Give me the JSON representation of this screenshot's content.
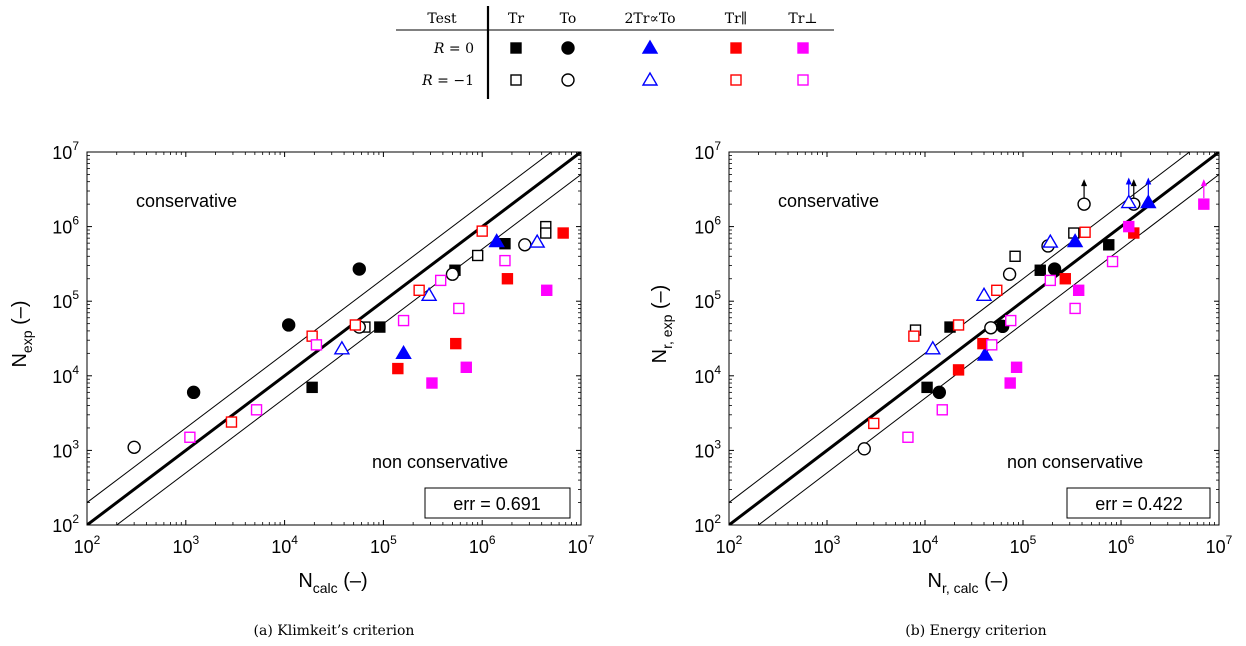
{
  "legend_table": {
    "header": [
      "Test",
      "Tr",
      "To",
      "2Tr∝To",
      "Tr∥",
      "Tr⊥"
    ],
    "rows": [
      {
        "label_var": "R",
        "label_val": " = 0",
        "filled": true
      },
      {
        "label_var": "R",
        "label_val": " = −1",
        "filled": false
      }
    ],
    "series_colors": {
      "Tr": "#000000",
      "To": "#000000",
      "2TrTo": "#0000ff",
      "TrPar": "#ff0000",
      "TrPerp": "#ff00ff"
    },
    "series_shapes": {
      "Tr": "square",
      "To": "circle",
      "2TrTo": "triangle",
      "TrPar": "square",
      "TrPerp": "square"
    }
  },
  "chart_data": [
    {
      "type": "scatter",
      "scale": "log",
      "xlim": [
        100,
        10000000
      ],
      "ylim": [
        100,
        10000000
      ],
      "xtick_exponents": [
        2,
        3,
        4,
        5,
        6,
        7
      ],
      "ytick_exponents": [
        2,
        3,
        4,
        5,
        6,
        7
      ],
      "tick_base": "10",
      "xlabel_main": "N",
      "xlabel_sub": "calc",
      "xlabel_suffix": " (–)",
      "ylabel_main": "N",
      "ylabel_sub": "exp",
      "ylabel_suffix": " (–)",
      "annotation_top": "conservative",
      "annotation_bottom": "non conservative",
      "err_label": "err = 0.691",
      "caption": "(a) Klimkeit’s criterion",
      "reference_lines": {
        "diagonal": 1,
        "band_factor": 2
      },
      "points": [
        {
          "s": "Tr",
          "f": true,
          "x": 19000,
          "y": 7000
        },
        {
          "s": "Tr",
          "f": true,
          "x": 92000,
          "y": 45000
        },
        {
          "s": "Tr",
          "f": true,
          "x": 530000,
          "y": 260000
        },
        {
          "s": "Tr",
          "f": true,
          "x": 1700000,
          "y": 590000
        },
        {
          "s": "Tr",
          "f": false,
          "x": 65000,
          "y": 45000
        },
        {
          "s": "Tr",
          "f": false,
          "x": 900000,
          "y": 410000
        },
        {
          "s": "Tr",
          "f": false,
          "x": 4400000,
          "y": 1000000
        },
        {
          "s": "Tr",
          "f": false,
          "x": 4400000,
          "y": 820000
        },
        {
          "s": "To",
          "f": true,
          "x": 1200,
          "y": 6000
        },
        {
          "s": "To",
          "f": true,
          "x": 11000,
          "y": 48000
        },
        {
          "s": "To",
          "f": true,
          "x": 57000,
          "y": 270000
        },
        {
          "s": "To",
          "f": false,
          "x": 300,
          "y": 1100
        },
        {
          "s": "To",
          "f": false,
          "x": 57000,
          "y": 45000
        },
        {
          "s": "To",
          "f": false,
          "x": 500000,
          "y": 230000
        },
        {
          "s": "To",
          "f": false,
          "x": 2700000,
          "y": 570000
        },
        {
          "s": "2TrTo",
          "f": true,
          "x": 160000,
          "y": 20000
        },
        {
          "s": "2TrTo",
          "f": true,
          "x": 1400000,
          "y": 630000
        },
        {
          "s": "2TrTo",
          "f": false,
          "x": 38000,
          "y": 23000
        },
        {
          "s": "2TrTo",
          "f": false,
          "x": 290000,
          "y": 120000
        },
        {
          "s": "2TrTo",
          "f": false,
          "x": 3600000,
          "y": 620000
        },
        {
          "s": "TrPar",
          "f": true,
          "x": 140000,
          "y": 12500
        },
        {
          "s": "TrPar",
          "f": true,
          "x": 540000,
          "y": 27000
        },
        {
          "s": "TrPar",
          "f": true,
          "x": 1800000,
          "y": 200000
        },
        {
          "s": "TrPar",
          "f": true,
          "x": 6600000,
          "y": 820000
        },
        {
          "s": "TrPar",
          "f": false,
          "x": 2900,
          "y": 2400
        },
        {
          "s": "TrPar",
          "f": false,
          "x": 19000,
          "y": 34000
        },
        {
          "s": "TrPar",
          "f": false,
          "x": 52000,
          "y": 48000
        },
        {
          "s": "TrPar",
          "f": false,
          "x": 230000,
          "y": 140000
        },
        {
          "s": "TrPar",
          "f": false,
          "x": 1000000,
          "y": 870000
        },
        {
          "s": "TrPerp",
          "f": true,
          "x": 310000,
          "y": 8000
        },
        {
          "s": "TrPerp",
          "f": true,
          "x": 690000,
          "y": 13000
        },
        {
          "s": "TrPerp",
          "f": true,
          "x": 4500000,
          "y": 140000
        },
        {
          "s": "TrPerp",
          "f": false,
          "x": 1100,
          "y": 1500
        },
        {
          "s": "TrPerp",
          "f": false,
          "x": 5200,
          "y": 3500
        },
        {
          "s": "TrPerp",
          "f": false,
          "x": 21000,
          "y": 26000
        },
        {
          "s": "TrPerp",
          "f": false,
          "x": 160000,
          "y": 55000
        },
        {
          "s": "TrPerp",
          "f": false,
          "x": 380000,
          "y": 190000
        },
        {
          "s": "TrPerp",
          "f": false,
          "x": 580000,
          "y": 80000
        },
        {
          "s": "TrPerp",
          "f": false,
          "x": 1700000,
          "y": 350000
        }
      ]
    },
    {
      "type": "scatter",
      "scale": "log",
      "xlim": [
        100,
        10000000
      ],
      "ylim": [
        100,
        10000000
      ],
      "xtick_exponents": [
        2,
        3,
        4,
        5,
        6,
        7
      ],
      "ytick_exponents": [
        2,
        3,
        4,
        5,
        6,
        7
      ],
      "tick_base": "10",
      "xlabel_main": "N",
      "xlabel_sub": "r, calc",
      "xlabel_suffix": " (–)",
      "ylabel_main": "N",
      "ylabel_sub": "r, exp",
      "ylabel_suffix": " (–)",
      "annotation_top": "conservative",
      "annotation_bottom": "non conservative",
      "err_label": "err = 0.422",
      "caption": "(b) Energy criterion",
      "reference_lines": {
        "diagonal": 1,
        "band_factor": 2
      },
      "points": [
        {
          "s": "Tr",
          "f": true,
          "x": 10500,
          "y": 7000
        },
        {
          "s": "Tr",
          "f": true,
          "x": 18000,
          "y": 45000
        },
        {
          "s": "Tr",
          "f": true,
          "x": 150000,
          "y": 260000
        },
        {
          "s": "Tr",
          "f": true,
          "x": 750000,
          "y": 570000
        },
        {
          "s": "Tr",
          "f": false,
          "x": 8000,
          "y": 41000
        },
        {
          "s": "Tr",
          "f": false,
          "x": 83000,
          "y": 400000
        },
        {
          "s": "Tr",
          "f": false,
          "x": 330000,
          "y": 820000
        },
        {
          "s": "To",
          "f": true,
          "x": 14000,
          "y": 6000
        },
        {
          "s": "To",
          "f": true,
          "x": 62000,
          "y": 46000
        },
        {
          "s": "To",
          "f": true,
          "x": 210000,
          "y": 270000
        },
        {
          "s": "To",
          "f": false,
          "x": 2400,
          "y": 1050
        },
        {
          "s": "To",
          "f": false,
          "x": 47000,
          "y": 44000
        },
        {
          "s": "To",
          "f": false,
          "x": 73000,
          "y": 230000
        },
        {
          "s": "To",
          "f": false,
          "x": 180000,
          "y": 550000
        },
        {
          "s": "To",
          "f": false,
          "x": 420000,
          "y": 2000000,
          "arrow": true
        },
        {
          "s": "To",
          "f": false,
          "x": 1350000,
          "y": 2000000,
          "arrow": true
        },
        {
          "s": "2TrTo",
          "f": true,
          "x": 41000,
          "y": 19000
        },
        {
          "s": "2TrTo",
          "f": true,
          "x": 340000,
          "y": 630000
        },
        {
          "s": "2TrTo",
          "f": true,
          "x": 1900000,
          "y": 2100000,
          "arrow": true
        },
        {
          "s": "2TrTo",
          "f": false,
          "x": 12000,
          "y": 23000
        },
        {
          "s": "2TrTo",
          "f": false,
          "x": 40000,
          "y": 120000
        },
        {
          "s": "2TrTo",
          "f": false,
          "x": 190000,
          "y": 620000
        },
        {
          "s": "2TrTo",
          "f": false,
          "x": 1200000,
          "y": 2100000,
          "arrow": true
        },
        {
          "s": "TrPar",
          "f": true,
          "x": 22000,
          "y": 12000
        },
        {
          "s": "TrPar",
          "f": true,
          "x": 39000,
          "y": 27000
        },
        {
          "s": "TrPar",
          "f": true,
          "x": 270000,
          "y": 200000
        },
        {
          "s": "TrPar",
          "f": true,
          "x": 1350000,
          "y": 820000
        },
        {
          "s": "TrPar",
          "f": false,
          "x": 3000,
          "y": 2300
        },
        {
          "s": "TrPar",
          "f": false,
          "x": 7700,
          "y": 34000
        },
        {
          "s": "TrPar",
          "f": false,
          "x": 22000,
          "y": 48000
        },
        {
          "s": "TrPar",
          "f": false,
          "x": 54000,
          "y": 140000
        },
        {
          "s": "TrPar",
          "f": false,
          "x": 430000,
          "y": 840000
        },
        {
          "s": "TrPerp",
          "f": true,
          "x": 74000,
          "y": 8000
        },
        {
          "s": "TrPerp",
          "f": true,
          "x": 86000,
          "y": 13000
        },
        {
          "s": "TrPerp",
          "f": true,
          "x": 370000,
          "y": 140000
        },
        {
          "s": "TrPerp",
          "f": true,
          "x": 1200000,
          "y": 1000000
        },
        {
          "s": "TrPerp",
          "f": true,
          "x": 7000000,
          "y": 2000000,
          "arrow": true
        },
        {
          "s": "TrPerp",
          "f": false,
          "x": 6700,
          "y": 1500
        },
        {
          "s": "TrPerp",
          "f": false,
          "x": 15000,
          "y": 3500
        },
        {
          "s": "TrPerp",
          "f": false,
          "x": 48000,
          "y": 26000
        },
        {
          "s": "TrPerp",
          "f": false,
          "x": 75000,
          "y": 55000
        },
        {
          "s": "TrPerp",
          "f": false,
          "x": 190000,
          "y": 190000
        },
        {
          "s": "TrPerp",
          "f": false,
          "x": 340000,
          "y": 80000
        },
        {
          "s": "TrPerp",
          "f": false,
          "x": 820000,
          "y": 340000
        }
      ]
    }
  ]
}
